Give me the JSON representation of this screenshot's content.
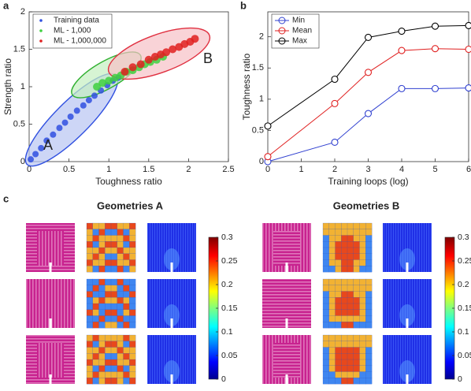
{
  "chart_data": [
    {
      "type": "scatter",
      "panel_label": "a",
      "xlabel": "Toughness ratio",
      "ylabel": "Strength ratio",
      "xlim": [
        0,
        2.5
      ],
      "xticks": [
        0,
        0.5,
        1,
        1.5,
        2,
        2.5
      ],
      "ylim": [
        0,
        2
      ],
      "yticks": [
        0,
        0.5,
        1,
        1.5,
        2
      ],
      "legend": "upper left",
      "annotations": [
        "A",
        "B"
      ],
      "series": [
        {
          "name": "Training data",
          "color": "#3050e0",
          "x": [
            0.02,
            0.08,
            0.15,
            0.22,
            0.3,
            0.38,
            0.45,
            0.52,
            0.6,
            0.68,
            0.75,
            0.82,
            0.9,
            0.98,
            1.05,
            1.12
          ],
          "y": [
            0.03,
            0.1,
            0.18,
            0.28,
            0.36,
            0.45,
            0.52,
            0.6,
            0.68,
            0.75,
            0.82,
            0.88,
            0.95,
            1.02,
            1.08,
            1.12
          ]
        },
        {
          "name": "ML - 1,000",
          "color": "#40d040",
          "x": [
            0.85,
            0.92,
            1.0,
            1.08,
            1.15,
            1.22,
            1.3,
            1.38,
            1.45,
            1.52,
            1.6,
            1.68
          ],
          "y": [
            1.0,
            1.05,
            1.08,
            1.12,
            1.15,
            1.2,
            1.22,
            1.26,
            1.3,
            1.33,
            1.36,
            1.4
          ]
        },
        {
          "name": "ML - 1,000,000",
          "color": "#e02020",
          "x": [
            1.2,
            1.3,
            1.4,
            1.5,
            1.58,
            1.65,
            1.72,
            1.8,
            1.88,
            1.95,
            2.02,
            2.08
          ],
          "y": [
            1.2,
            1.26,
            1.3,
            1.36,
            1.4,
            1.43,
            1.46,
            1.5,
            1.53,
            1.57,
            1.6,
            1.64
          ]
        }
      ]
    },
    {
      "type": "line",
      "panel_label": "b",
      "xlabel": "Training loops (log)",
      "ylabel": "Toughness ratio",
      "x": [
        0,
        2,
        3,
        4,
        5,
        6
      ],
      "xlim": [
        0,
        6
      ],
      "xticks": [
        0,
        1,
        2,
        3,
        4,
        5,
        6
      ],
      "ylim": [
        0,
        2.4
      ],
      "yticks": [
        0,
        0.5,
        1,
        1.5,
        2
      ],
      "legend": "upper left",
      "series": [
        {
          "name": "Min",
          "color": "#3040d0",
          "values": [
            0,
            0.31,
            0.77,
            1.17,
            1.17,
            1.18
          ]
        },
        {
          "name": "Mean",
          "color": "#e02020",
          "values": [
            0.08,
            0.93,
            1.43,
            1.78,
            1.81,
            1.8
          ]
        },
        {
          "name": "Max",
          "color": "#000000",
          "values": [
            0.57,
            1.32,
            1.99,
            2.09,
            2.17,
            2.18
          ]
        }
      ]
    }
  ],
  "panel_c": {
    "label": "c",
    "groups": [
      {
        "title": "Geometries A",
        "colorbar": {
          "lim": [
            0,
            0.3
          ],
          "ticks": [
            0,
            0.05,
            0.1,
            0.15,
            0.2,
            0.25,
            0.3
          ]
        }
      },
      {
        "title": "Geometries B",
        "colorbar": {
          "lim": [
            0,
            0.3
          ],
          "ticks": [
            0,
            0.05,
            0.1,
            0.15,
            0.2,
            0.25,
            0.3
          ]
        }
      }
    ]
  }
}
